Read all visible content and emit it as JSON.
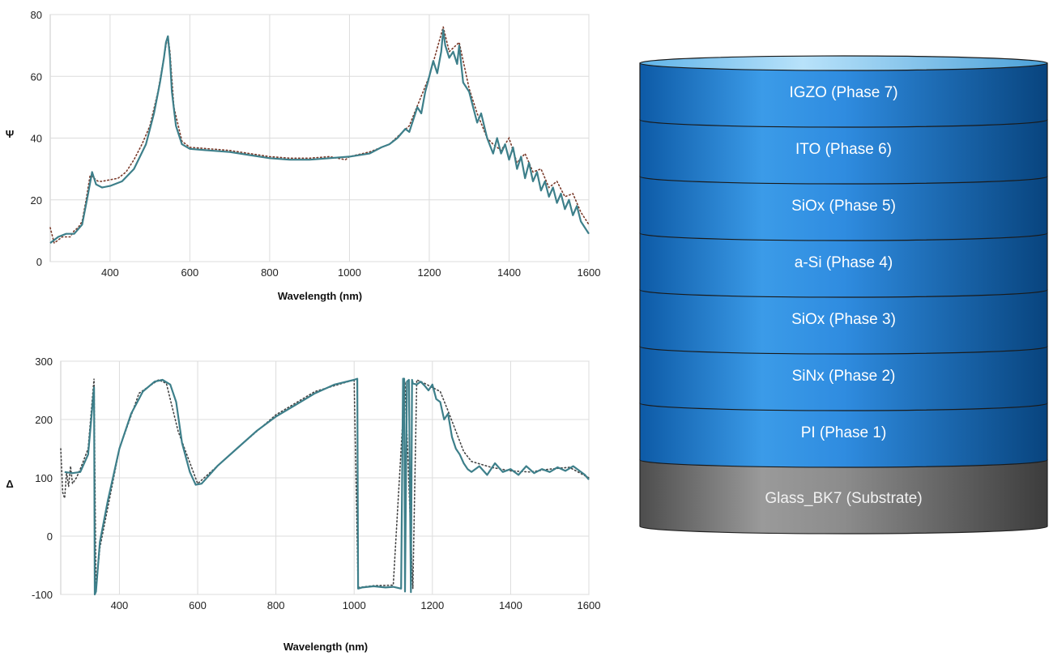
{
  "chart_data": [
    {
      "type": "line",
      "xlabel": "Wavelength (nm)",
      "ylabel": "Ψ",
      "xlim": [
        250,
        1600
      ],
      "ylim": [
        0,
        80
      ],
      "xticks": [
        400,
        600,
        800,
        1000,
        1200,
        1400,
        1600
      ],
      "yticks": [
        0,
        20,
        40,
        60,
        80
      ],
      "grid": true,
      "series": [
        {
          "role": "fit",
          "color": "#3d7f8a",
          "x": [
            250,
            270,
            290,
            310,
            330,
            345,
            355,
            365,
            380,
            400,
            430,
            460,
            490,
            510,
            525,
            535,
            540,
            545,
            550,
            555,
            565,
            580,
            600,
            650,
            700,
            750,
            800,
            850,
            900,
            950,
            1000,
            1050,
            1080,
            1100,
            1120,
            1140,
            1150,
            1160,
            1170,
            1180,
            1190,
            1200,
            1210,
            1220,
            1230,
            1235,
            1240,
            1250,
            1260,
            1270,
            1275,
            1285,
            1300,
            1310,
            1320,
            1330,
            1345,
            1360,
            1370,
            1380,
            1390,
            1400,
            1410,
            1420,
            1430,
            1440,
            1450,
            1460,
            1470,
            1480,
            1490,
            1500,
            1510,
            1520,
            1530,
            1540,
            1550,
            1560,
            1570,
            1580,
            1590,
            1600
          ],
          "y": [
            6,
            8,
            9,
            9,
            12,
            22,
            29,
            25,
            24,
            24.5,
            26,
            30,
            38,
            48,
            58,
            66,
            71,
            73,
            66,
            55,
            44,
            38,
            36.5,
            36,
            35.5,
            34.5,
            33.5,
            33,
            33,
            33.5,
            34,
            35,
            37,
            38,
            40,
            43,
            42,
            46,
            50,
            48,
            55,
            60,
            65,
            61,
            68,
            75,
            70,
            66,
            68,
            64,
            70,
            58,
            55,
            50,
            45,
            48,
            40,
            35,
            40,
            35,
            38,
            33,
            37,
            30,
            34,
            27,
            32,
            26,
            29,
            23,
            26,
            21,
            24,
            19,
            22,
            17,
            20,
            15,
            18,
            13,
            11,
            9
          ]
        },
        {
          "role": "measured",
          "color": "#7a3a2a",
          "x": [
            250,
            260,
            270,
            280,
            290,
            300,
            310,
            320,
            330,
            340,
            350,
            360,
            370,
            380,
            400,
            420,
            440,
            460,
            480,
            500,
            520,
            540,
            545,
            550,
            560,
            580,
            600,
            650,
            700,
            750,
            800,
            850,
            900,
            950,
            990,
            1000,
            1050,
            1100,
            1150,
            1200,
            1235,
            1250,
            1275,
            1300,
            1320,
            1345,
            1360,
            1380,
            1400,
            1420,
            1440,
            1460,
            1480,
            1500,
            1520,
            1540,
            1560,
            1580,
            1600
          ],
          "y": [
            11,
            6,
            7,
            8,
            8,
            8,
            10,
            11,
            13,
            20,
            28,
            27,
            26,
            26,
            26.5,
            27,
            29,
            33,
            38,
            44,
            55,
            70,
            73,
            68,
            50,
            39,
            37,
            36.5,
            36,
            35,
            34,
            33.5,
            33.5,
            34,
            33,
            34,
            35.5,
            38,
            44,
            60,
            76,
            68,
            71,
            56,
            48,
            40,
            38,
            36,
            40,
            32,
            35,
            29,
            30,
            24,
            26,
            21,
            22,
            16,
            12
          ]
        }
      ]
    },
    {
      "type": "line",
      "xlabel": "Wavelength (nm)",
      "ylabel": "Δ",
      "xlim": [
        250,
        1600
      ],
      "ylim": [
        -100,
        300
      ],
      "xticks": [
        400,
        600,
        800,
        1000,
        1200,
        1400,
        1600
      ],
      "yticks": [
        -100,
        0,
        100,
        200,
        300
      ],
      "grid": true,
      "series": [
        {
          "role": "fit",
          "color": "#3d7f8a",
          "x": [
            260,
            280,
            300,
            320,
            335,
            337,
            340,
            350,
            370,
            400,
            430,
            460,
            490,
            510,
            530,
            545,
            560,
            580,
            595,
            610,
            650,
            700,
            750,
            800,
            850,
            900,
            950,
            1000,
            1008,
            1010,
            1020,
            1050,
            1080,
            1100,
            1120,
            1125,
            1128,
            1130,
            1135,
            1140,
            1145,
            1148,
            1150,
            1160,
            1170,
            1180,
            1190,
            1200,
            1210,
            1220,
            1230,
            1240,
            1250,
            1260,
            1270,
            1280,
            1290,
            1300,
            1320,
            1340,
            1360,
            1380,
            1400,
            1420,
            1440,
            1460,
            1480,
            1500,
            1520,
            1540,
            1560,
            1580,
            1590,
            1600
          ],
          "y": [
            110,
            108,
            110,
            140,
            255,
            -100,
            -95,
            -10,
            60,
            150,
            210,
            248,
            265,
            268,
            260,
            230,
            160,
            110,
            88,
            90,
            120,
            150,
            180,
            205,
            225,
            245,
            260,
            268,
            270,
            -90,
            -88,
            -86,
            -88,
            -87,
            -90,
            270,
            270,
            -95,
            265,
            268,
            -96,
            268,
            262,
            260,
            265,
            258,
            250,
            260,
            235,
            230,
            200,
            210,
            170,
            150,
            140,
            125,
            115,
            110,
            120,
            105,
            125,
            110,
            115,
            105,
            120,
            108,
            115,
            110,
            118,
            112,
            120,
            110,
            105,
            97
          ]
        },
        {
          "role": "measured",
          "color": "#444444",
          "x": [
            250,
            255,
            260,
            265,
            270,
            275,
            280,
            290,
            300,
            320,
            335,
            340,
            350,
            400,
            450,
            500,
            520,
            550,
            600,
            700,
            800,
            900,
            1000,
            1010,
            1050,
            1100,
            1130,
            1150,
            1160,
            1180,
            1200,
            1220,
            1240,
            1260,
            1280,
            1300,
            1350,
            1400,
            1450,
            1500,
            1550,
            1600
          ],
          "y": [
            150,
            75,
            65,
            110,
            85,
            120,
            90,
            100,
            115,
            150,
            270,
            -90,
            -20,
            150,
            245,
            268,
            262,
            180,
            90,
            150,
            208,
            248,
            268,
            -88,
            -85,
            -84,
            265,
            -90,
            268,
            262,
            255,
            248,
            215,
            180,
            145,
            128,
            118,
            112,
            110,
            115,
            118,
            100
          ]
        }
      ]
    }
  ],
  "stack": {
    "layers": [
      "IGZO (Phase 7)",
      "ITO (Phase 6)",
      "SiOx (Phase 5)",
      "a-Si (Phase 4)",
      "SiOx (Phase 3)",
      "SiNx (Phase 2)",
      "PI (Phase 1)"
    ],
    "substrate": "Glass_BK7 (Substrate)",
    "layer_color": "#1e7fd6",
    "substrate_color": "#8c8c8c",
    "top_color": "#7fc6f0"
  }
}
